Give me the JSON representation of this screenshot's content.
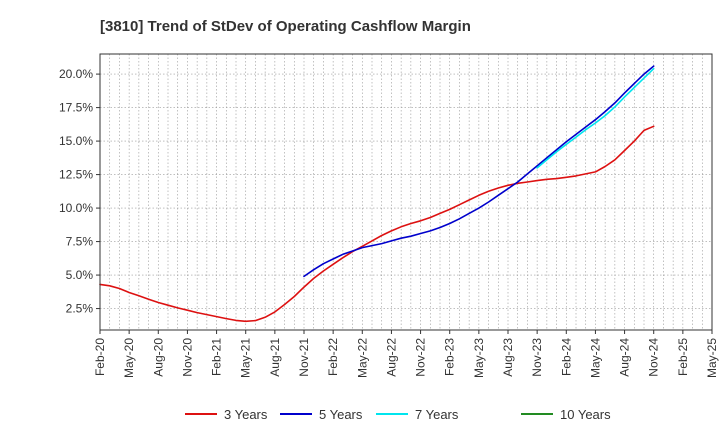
{
  "chart_data": {
    "type": "line",
    "title": "[3810]  Trend of StDev of Operating Cashflow Margin",
    "xlabel": "",
    "ylabel": "",
    "x_ticks": [
      "Feb-20",
      "May-20",
      "Aug-20",
      "Nov-20",
      "Feb-21",
      "May-21",
      "Aug-21",
      "Nov-21",
      "Feb-22",
      "May-22",
      "Aug-22",
      "Nov-22",
      "Feb-23",
      "May-23",
      "Aug-23",
      "Nov-23",
      "Feb-24",
      "May-24",
      "Aug-24",
      "Nov-24",
      "Feb-25",
      "May-25"
    ],
    "y_ticks": [
      "2.5%",
      "5.0%",
      "7.5%",
      "10.0%",
      "12.5%",
      "15.0%",
      "17.5%",
      "20.0%"
    ],
    "y_tick_values": [
      2.5,
      5.0,
      7.5,
      10.0,
      12.5,
      15.0,
      17.5,
      20.0
    ],
    "ylim": [
      0.9,
      21.5
    ],
    "grid": true,
    "legend_position": "bottom",
    "series": [
      {
        "name": "3 Years",
        "color": "#dd1111",
        "x": [
          "Feb-20",
          "Mar-20",
          "Apr-20",
          "May-20",
          "Jun-20",
          "Jul-20",
          "Aug-20",
          "Sep-20",
          "Oct-20",
          "Nov-20",
          "Dec-20",
          "Jan-21",
          "Feb-21",
          "Mar-21",
          "Apr-21",
          "May-21",
          "Jun-21",
          "Jul-21",
          "Aug-21",
          "Sep-21",
          "Oct-21",
          "Nov-21",
          "Dec-21",
          "Jan-22",
          "Feb-22",
          "Mar-22",
          "Apr-22",
          "May-22",
          "Jun-22",
          "Jul-22",
          "Aug-22",
          "Sep-22",
          "Oct-22",
          "Nov-22",
          "Dec-22",
          "Jan-23",
          "Feb-23",
          "Mar-23",
          "Apr-23",
          "May-23",
          "Jun-23",
          "Jul-23",
          "Aug-23",
          "Sep-23",
          "Oct-23",
          "Nov-23",
          "Dec-23",
          "Jan-24",
          "Feb-24",
          "Mar-24",
          "Apr-24",
          "May-24",
          "Jun-24",
          "Jul-24",
          "Aug-24",
          "Sep-24",
          "Oct-24",
          "Nov-24"
        ],
        "values": [
          4.3,
          4.2,
          4.0,
          3.7,
          3.45,
          3.2,
          2.95,
          2.75,
          2.55,
          2.38,
          2.2,
          2.05,
          1.9,
          1.75,
          1.62,
          1.55,
          1.6,
          1.85,
          2.25,
          2.8,
          3.4,
          4.1,
          4.75,
          5.3,
          5.8,
          6.3,
          6.75,
          7.15,
          7.55,
          7.95,
          8.3,
          8.6,
          8.85,
          9.05,
          9.3,
          9.6,
          9.9,
          10.25,
          10.6,
          10.95,
          11.25,
          11.5,
          11.7,
          11.85,
          11.95,
          12.05,
          12.15,
          12.2,
          12.3,
          12.4,
          12.55,
          12.7,
          13.1,
          13.6,
          14.3,
          15.0,
          15.8,
          16.1
        ]
      },
      {
        "name": "5 Years",
        "color": "#0000cc",
        "x": [
          "Nov-21",
          "Dec-21",
          "Jan-22",
          "Feb-22",
          "Mar-22",
          "Apr-22",
          "May-22",
          "Jun-22",
          "Jul-22",
          "Aug-22",
          "Sep-22",
          "Oct-22",
          "Nov-22",
          "Dec-22",
          "Jan-23",
          "Feb-23",
          "Mar-23",
          "Apr-23",
          "May-23",
          "Jun-23",
          "Jul-23",
          "Aug-23",
          "Sep-23",
          "Oct-23",
          "Nov-23",
          "Dec-23",
          "Jan-24",
          "Feb-24",
          "Mar-24",
          "Apr-24",
          "May-24",
          "Jun-24",
          "Jul-24",
          "Aug-24",
          "Sep-24",
          "Oct-24",
          "Nov-24"
        ],
        "values": [
          4.9,
          5.4,
          5.85,
          6.2,
          6.55,
          6.8,
          7.05,
          7.2,
          7.35,
          7.55,
          7.75,
          7.9,
          8.1,
          8.3,
          8.55,
          8.85,
          9.2,
          9.6,
          10.0,
          10.45,
          10.95,
          11.45,
          11.95,
          12.55,
          13.15,
          13.75,
          14.35,
          14.95,
          15.5,
          16.05,
          16.6,
          17.2,
          17.85,
          18.6,
          19.3,
          20.0,
          20.6
        ]
      },
      {
        "name": "7 Years",
        "color": "#00e5ee",
        "x": [
          "Nov-23",
          "Dec-23",
          "Jan-24",
          "Feb-24",
          "Mar-24",
          "Apr-24",
          "May-24",
          "Jun-24",
          "Jul-24",
          "Aug-24",
          "Sep-24",
          "Oct-24",
          "Nov-24"
        ],
        "values": [
          13.0,
          13.6,
          14.2,
          14.75,
          15.3,
          15.85,
          16.35,
          16.9,
          17.55,
          18.3,
          19.0,
          19.7,
          20.4
        ]
      },
      {
        "name": "10 Years",
        "color": "#228b22",
        "x": [],
        "values": []
      }
    ]
  }
}
